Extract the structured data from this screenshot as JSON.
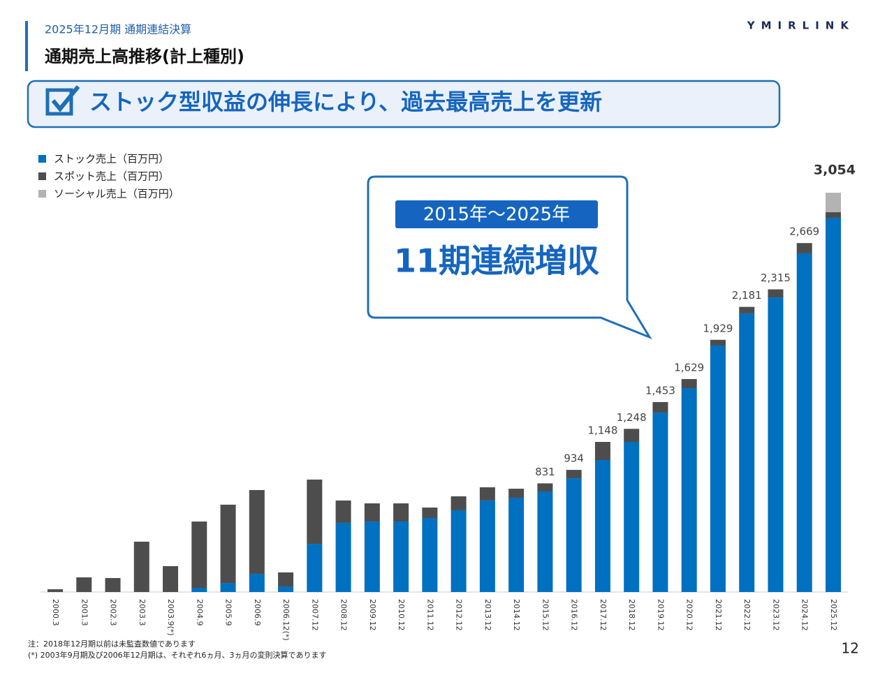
{
  "header": {
    "subtitle": "2025年12月期 通期連結決算",
    "title": "通期売上高推移(計上種別)",
    "logo": "YMIRLINK",
    "page": "12"
  },
  "banner": {
    "text": "ストック型収益の伸長により、過去最高売上を更新"
  },
  "callout": {
    "period": "2015年～2025年",
    "text": "11期連続増収"
  },
  "notes": [
    "注：2018年12月期以前は未監査数値であります",
    "(*) 2003年9月期及び2006年12月期は、それぞれ6ヵ月、3ヵ月の変則決算であります"
  ],
  "chart_data": {
    "type": "stacked-bar",
    "categories": [
      "2000.3",
      "2001.3",
      "2002.3",
      "2003.3",
      "2003.9(*)",
      "2004.9",
      "2005.9",
      "2006.9",
      "2006.12(*)",
      "2007.12",
      "2008.12",
      "2009.12",
      "2010.12",
      "2011.12",
      "2012.12",
      "2013.12",
      "2014.12",
      "2015.12",
      "2016.12",
      "2017.12",
      "2018.12",
      "2019.12",
      "2020.12",
      "2021.12",
      "2022.12",
      "2023.12",
      "2024.12",
      "2025.12"
    ],
    "series": [
      {
        "name": "ストック売上（百万円）",
        "color": "#0070c0",
        "values": [
          0,
          0,
          0,
          0,
          0,
          32,
          69,
          139,
          43,
          368,
          529,
          539,
          539,
          566,
          625,
          700,
          721,
          769,
          870,
          1009,
          1148,
          1372,
          1559,
          1885,
          2131,
          2253,
          2590,
          2862
        ]
      },
      {
        "name": "スポット売上（百万円）",
        "color": "#4d4d4d",
        "values": [
          21,
          112,
          107,
          385,
          198,
          507,
          599,
          641,
          107,
          492,
          171,
          139,
          139,
          80,
          107,
          101,
          69,
          62,
          64,
          139,
          100,
          81,
          70,
          44,
          50,
          62,
          79,
          43
        ]
      },
      {
        "name": "ソーシャル売上（百万円）",
        "color": "#b3b3b3",
        "values": [
          0,
          0,
          0,
          0,
          0,
          0,
          0,
          0,
          0,
          0,
          0,
          0,
          0,
          0,
          0,
          0,
          0,
          0,
          0,
          0,
          0,
          0,
          0,
          0,
          0,
          0,
          0,
          149
        ]
      }
    ],
    "totals": [
      null,
      null,
      null,
      null,
      null,
      null,
      null,
      null,
      null,
      null,
      null,
      null,
      null,
      null,
      null,
      null,
      null,
      831,
      934,
      1148,
      1248,
      1453,
      1629,
      1929,
      2181,
      2315,
      2669,
      3054
    ],
    "total_labels": [
      null,
      null,
      null,
      null,
      null,
      null,
      null,
      null,
      null,
      null,
      null,
      null,
      null,
      null,
      null,
      null,
      null,
      "831",
      "934",
      "1,148",
      "1,248",
      "1,453",
      "1,629",
      "1,929",
      "2,181",
      "2,315",
      "2,669",
      "3,054"
    ],
    "ylim": [
      0,
      3300
    ]
  }
}
